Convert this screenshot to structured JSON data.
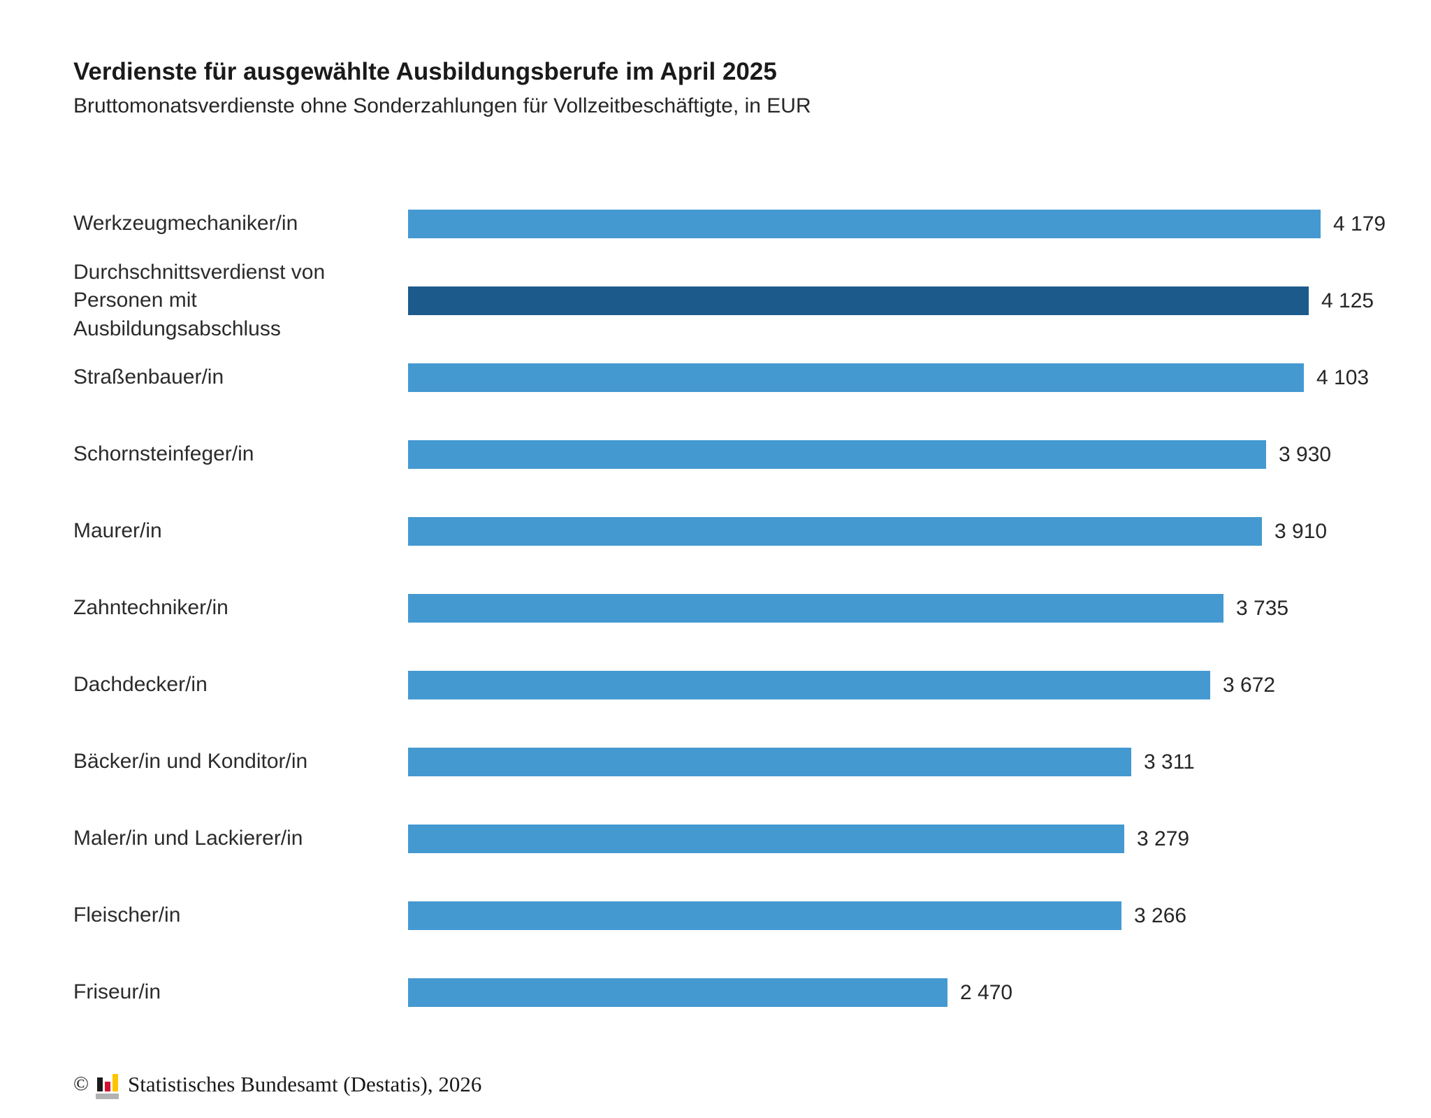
{
  "chart_data": {
    "type": "bar",
    "orientation": "horizontal",
    "title": "Verdienste für ausgewählte Ausbildungsberufe im April 2025",
    "subtitle": "Bruttomonatsverdienste ohne Sonderzahlungen für Vollzeitbeschäftigte, in EUR",
    "categories": [
      "Werkzeugmechaniker/in",
      "Durchschnittsverdienst von Personen mit Ausbildungsabschluss",
      "Straßenbauer/in",
      "Schornsteinfeger/in",
      "Maurer/in",
      "Zahntechniker/in",
      "Dachdecker/in",
      "Bäcker/in und Konditor/in",
      "Maler/in und Lackierer/in",
      "Fleischer/in",
      "Friseur/in"
    ],
    "values": [
      4179,
      4125,
      4103,
      3930,
      3910,
      3735,
      3672,
      3311,
      3279,
      3266,
      2470
    ],
    "value_labels": [
      "4 179",
      "4 125",
      "4 103",
      "3 930",
      "3 910",
      "3 735",
      "3 672",
      "3 311",
      "3 279",
      "3 266",
      "2 470"
    ],
    "highlight_index": 1,
    "bar_color": "#4499d1",
    "highlight_color": "#1d5a8c",
    "xlim": [
      0,
      4179
    ],
    "grid": false,
    "legend": false,
    "value_label_position": "right-of-bar"
  },
  "footer": {
    "copyright_symbol": "©",
    "source_label": "Statistisches Bundesamt (Destatis), 2026",
    "logo_icon": "destatis-bar-chart-icon",
    "logo_colors": {
      "bar_black": "#1a1a1a",
      "bar_red": "#d1112e",
      "bar_gold": "#fdc500",
      "base_gray": "#b2b2b2"
    }
  }
}
